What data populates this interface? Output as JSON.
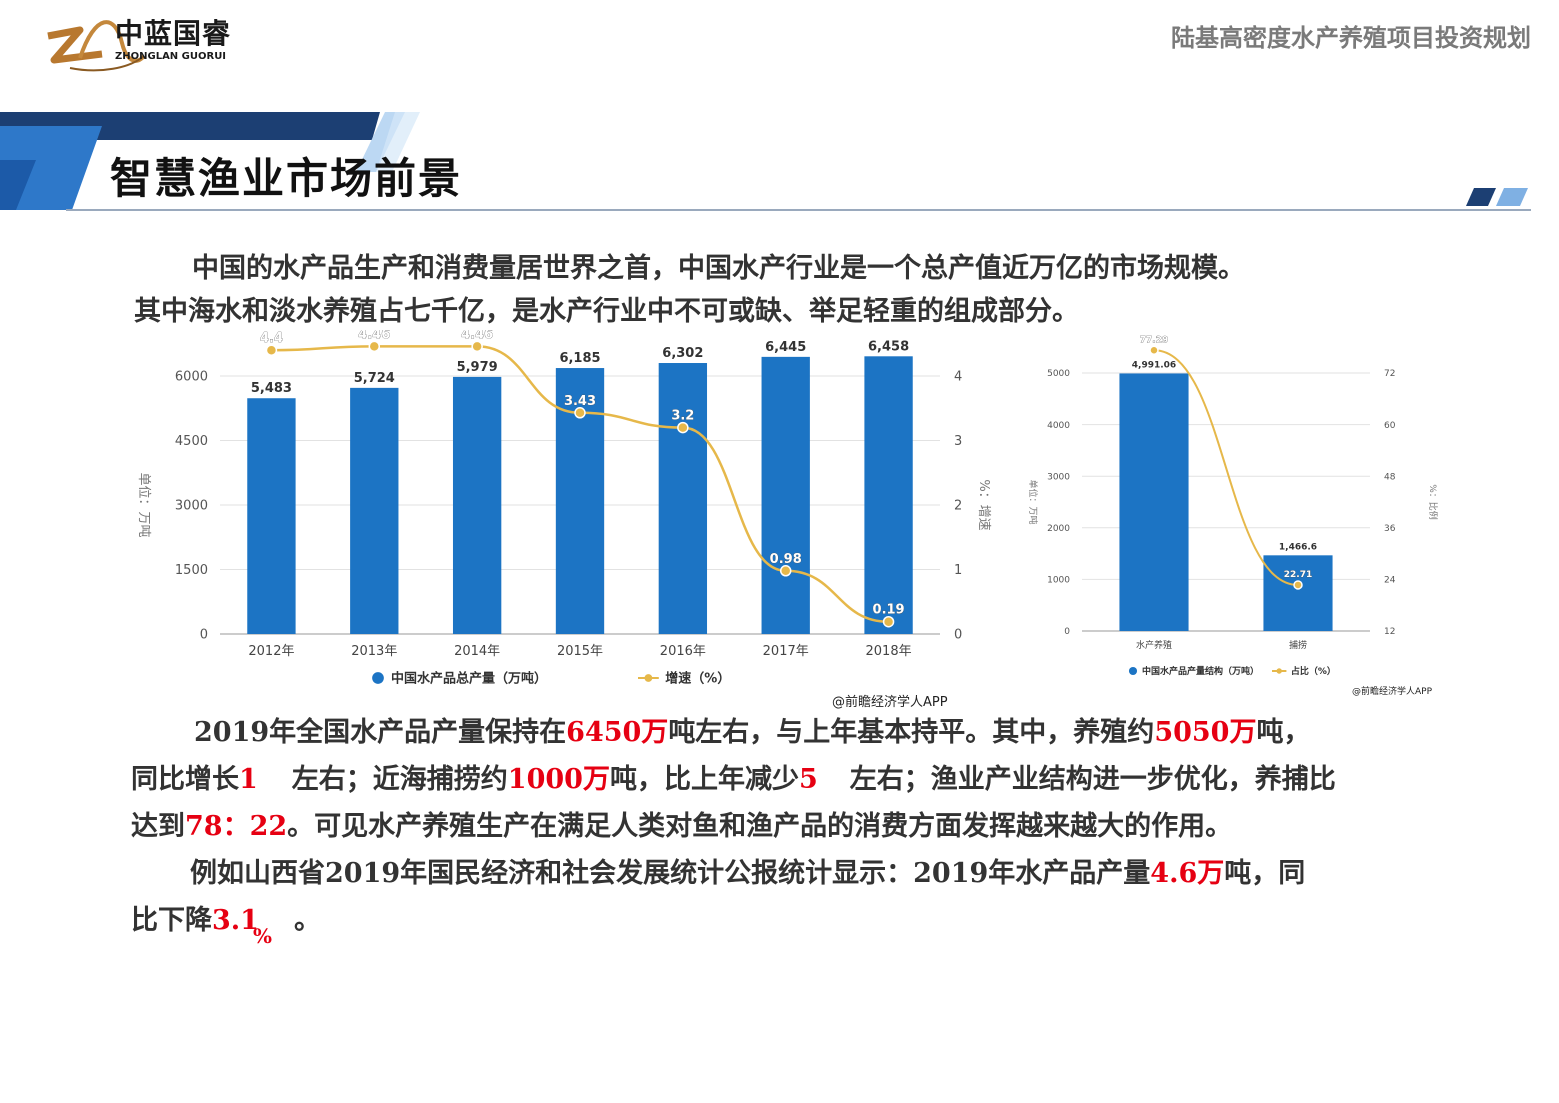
{
  "header": {
    "logo_cn": "中蓝国睿",
    "logo_en": "ZHONGLAN GUORUI",
    "doc_title": "陆基高密度水产养殖项目投资规划"
  },
  "section_title": "智慧渔业市场前景",
  "intro": {
    "line1": "中国的水产品生产和消费量居世界之首，中国水产行业是一个总产值近万亿的市场规模。",
    "line2": "其中海水和淡水养殖占七千亿，是水产行业中不可或缺、举足轻重的组成部分。"
  },
  "body": {
    "p1_l1_a": "2019年全国水产品产量保持在",
    "p1_l1_b": "6450万",
    "p1_l1_c": "吨左右，与上年基本持平。其中，养殖约",
    "p1_l1_d": "5050万",
    "p1_l1_e": "吨，",
    "p1_l2_a": "同比增长",
    "p1_l2_b": "1",
    "p1_l2_c": "左右；近海捕捞约",
    "p1_l2_d": "1000万",
    "p1_l2_e": "吨，比上年减少",
    "p1_l2_f": "5",
    "p1_l2_g": "左右；渔业产业结构进一步优化，养捕比",
    "p1_l3_a": "达到",
    "p1_l3_b": "78：22",
    "p1_l3_c": "。可见水产养殖生产在满足人类对鱼和渔产品的消费方面发挥越来越大的作用。",
    "p2_l1_a": "例如山西省2019年国民经济和社会发展统计公报统计显示：2019年水产品产量",
    "p2_l1_b": "4.6万",
    "p2_l1_c": "吨，同",
    "p2_l2_a": "比下降",
    "p2_l2_b": "3.1",
    "p2_l2_c": "%",
    "p2_l2_d": "。"
  },
  "chart_data": [
    {
      "type": "bar",
      "categories": [
        "2012年",
        "2013年",
        "2014年",
        "2015年",
        "2016年",
        "2017年",
        "2018年"
      ],
      "series": [
        {
          "name": "中国水产品总产量（万吨）",
          "type": "bar",
          "axis": "left",
          "values": [
            5483,
            5724,
            5979,
            6185,
            6302,
            6445,
            6458
          ],
          "labels": [
            "5,483",
            "5,724",
            "5,979",
            "6,185",
            "6,302",
            "6,445",
            "6,458"
          ]
        },
        {
          "name": "增速（%）",
          "type": "line",
          "axis": "right",
          "values": [
            4.4,
            4.46,
            4.46,
            3.43,
            3.2,
            0.98,
            0.19
          ],
          "labels": [
            "4.4",
            "4.46",
            "4.46",
            "3.43",
            "3.2",
            "0.98",
            "0.19"
          ]
        }
      ],
      "ylabel": "单位：万吨",
      "y2label": "%：增速",
      "ylim": [
        0,
        6000
      ],
      "yticks": [
        "0",
        "1500",
        "3000",
        "4500",
        "6000"
      ],
      "y2lim": [
        0,
        4
      ],
      "y2ticks": [
        "0",
        "1",
        "2",
        "3",
        "4"
      ],
      "legend": "bottom",
      "source": "@前瞻经济学人APP",
      "colors": {
        "bar": "#1c74c4",
        "line": "#e6b84a"
      }
    },
    {
      "type": "bar",
      "categories": [
        "水产养殖",
        "捕捞"
      ],
      "series": [
        {
          "name": "中国水产品产量结构（万吨）",
          "type": "bar",
          "axis": "left",
          "values": [
            4991.06,
            1466.6
          ],
          "labels": [
            "4,991.06",
            "1,466.6"
          ]
        },
        {
          "name": "占比（%）",
          "type": "line",
          "axis": "right",
          "values": [
            77.29,
            22.71
          ],
          "labels": [
            "77.29",
            "22.71"
          ]
        }
      ],
      "ylabel": "单位：万吨",
      "y2label": "%：比例",
      "ylim": [
        0,
        5000
      ],
      "yticks": [
        "0",
        "1000",
        "2000",
        "3000",
        "4000",
        "5000"
      ],
      "y2lim": [
        12,
        72
      ],
      "y2ticks": [
        "12",
        "24",
        "36",
        "48",
        "60",
        "72"
      ],
      "legend": "bottom",
      "source": "@前瞻经济学人APP",
      "colors": {
        "bar": "#1c74c4",
        "line": "#e6b84a"
      }
    }
  ]
}
